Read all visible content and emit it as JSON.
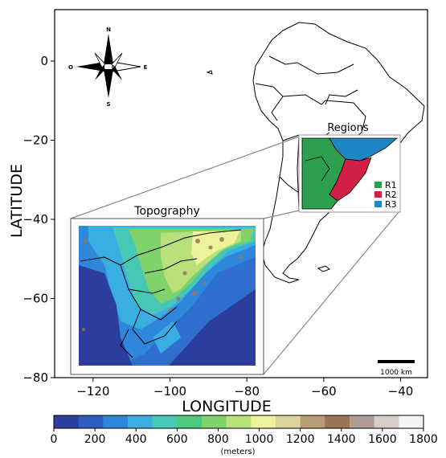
{
  "map": {
    "xlabel": "LONGITUDE",
    "ylabel": "LATITUDE",
    "xlim": [
      -130,
      -33
    ],
    "ylim": [
      -80,
      13
    ],
    "x_ticks": [
      -120,
      -100,
      -80,
      -60,
      -40
    ],
    "x_tick_labels": [
      "−120",
      "−100",
      "−80",
      "−60",
      "−40"
    ],
    "y_ticks": [
      0,
      -20,
      -40,
      -60,
      -80
    ],
    "y_tick_labels": [
      "0",
      "−20",
      "−40",
      "−60",
      "−80"
    ],
    "scale_bar_label": "1000 km"
  },
  "compass": {
    "north": "N",
    "south": "S",
    "east": "E",
    "west": "O"
  },
  "regions_inset": {
    "title": "Regions",
    "legend": [
      {
        "label": "R1",
        "color": "#2e9e4f"
      },
      {
        "label": "R2",
        "color": "#d21f45"
      },
      {
        "label": "R3",
        "color": "#1f86c4"
      }
    ]
  },
  "topography_inset": {
    "title": "Topography"
  },
  "colorbar": {
    "ticks": [
      "0",
      "200",
      "400",
      "600",
      "800",
      "1000",
      "1200",
      "1400",
      "1600",
      "1800"
    ],
    "unit_label": "(meters)",
    "range": [
      0,
      1800
    ],
    "colors": [
      "#2b3e9e",
      "#2f5cc1",
      "#2f87dc",
      "#3aaee0",
      "#45c9b5",
      "#4cc97a",
      "#7fd36a",
      "#b9e07a",
      "#eef29a",
      "#dcd49a",
      "#b89d74",
      "#9a7656",
      "#b09d95",
      "#d6ccc9",
      "#f6f4f3"
    ]
  }
}
